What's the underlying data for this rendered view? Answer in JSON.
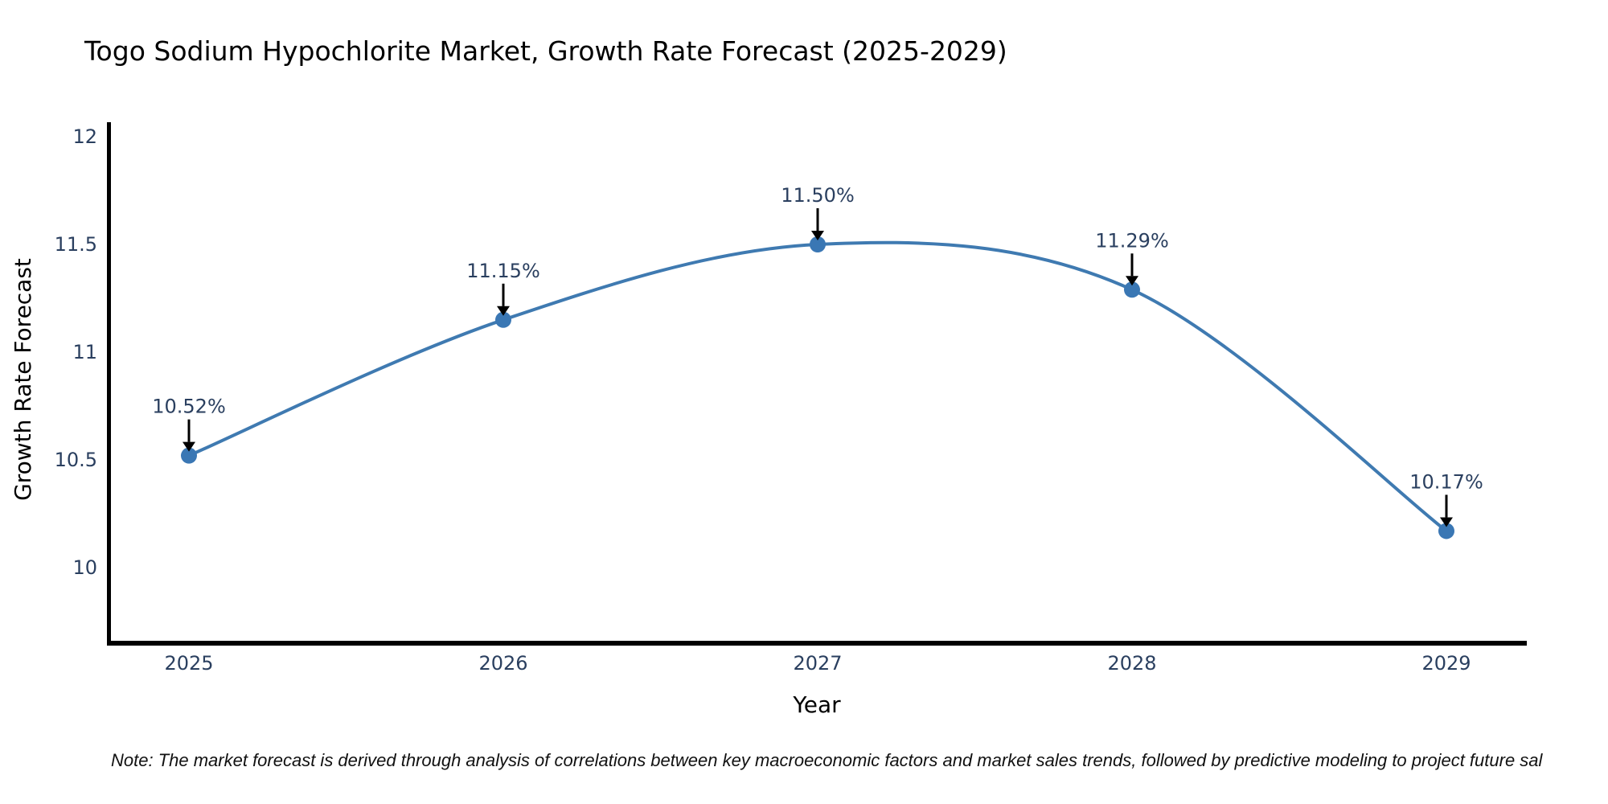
{
  "chart_data": {
    "type": "line",
    "title": "Togo Sodium Hypochlorite Market, Growth Rate Forecast (2025-2029)",
    "xlabel": "Year",
    "ylabel": "Growth Rate Forecast",
    "categories": [
      "2025",
      "2026",
      "2027",
      "2028",
      "2029"
    ],
    "values": [
      10.52,
      11.15,
      11.5,
      11.29,
      10.17
    ],
    "point_labels": [
      "10.52%",
      "11.15%",
      "11.50%",
      "11.29%",
      "10.17%"
    ],
    "ytick_values": [
      12,
      11.5,
      11,
      10.5,
      10
    ],
    "ytick_labels": [
      "12",
      "11.5",
      "11",
      "10.5",
      "10"
    ],
    "ylim": [
      9.64,
      12.06
    ],
    "grid": false,
    "legend": "none",
    "curve": "smooth-spline",
    "annotation_style": "percentage labels with downward black arrows onto each marker",
    "colors": {
      "line": "#3f7ab1",
      "marker": "#3a77b4",
      "text": "#2a3f5f",
      "arrow": "#000000",
      "axis": "#000000",
      "background": "#ffffff"
    }
  },
  "footnote": {
    "text": "Note: The market forecast is derived through analysis of correlations between key macroeconomic factors and market sales trends, followed by predictive modeling to project future sal"
  }
}
